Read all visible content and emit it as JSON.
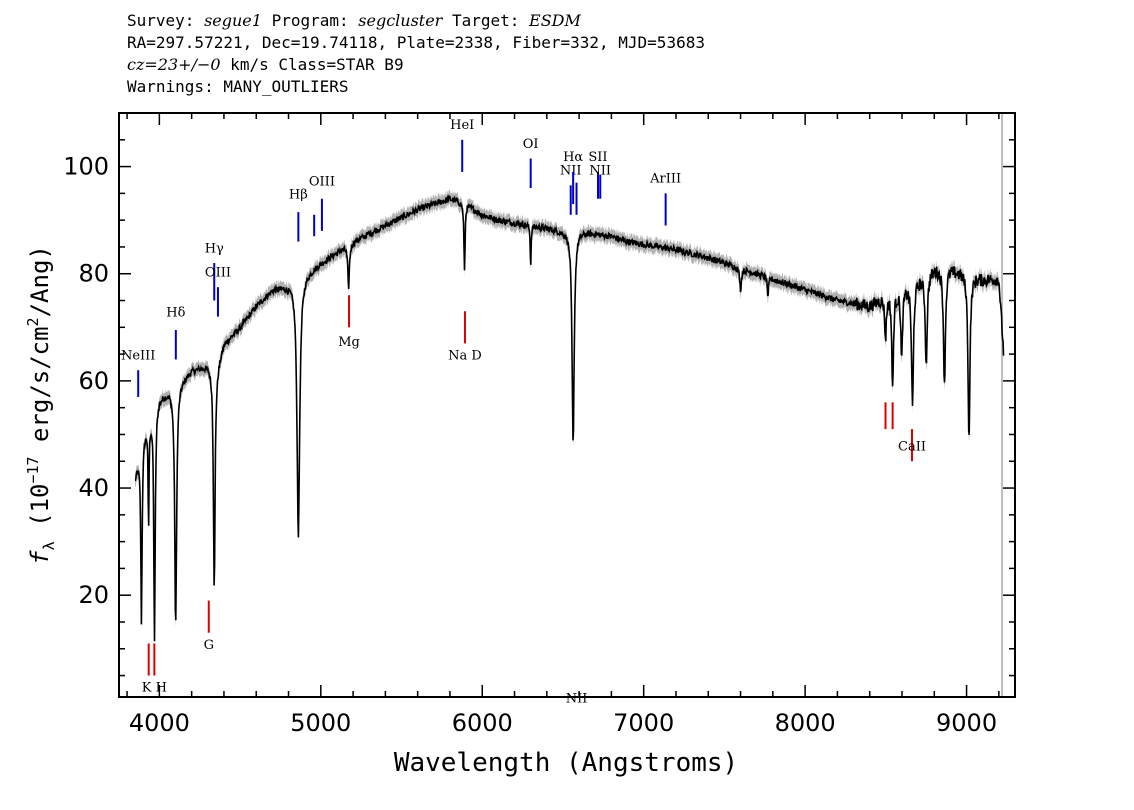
{
  "header": {
    "line1": {
      "survey_label": "Survey: ",
      "survey": "segue1",
      "program_label": " Program: ",
      "program": "segcluster",
      "target_label": " Target: ",
      "target": "ESDM"
    },
    "line2": "RA=297.57221, Dec=19.74118, Plate=2338, Fiber=332, MJD=53683",
    "line3": {
      "cz": "cz=23+/−0",
      "rest": " km/s Class=STAR B9"
    },
    "line4": "Warnings: MANY_OUTLIERS"
  },
  "chart_data": {
    "type": "line",
    "xlabel": "Wavelength (Angstroms)",
    "ylabel": "fλ (10⁻¹⁷ erg/s/cm²/Ang)",
    "ylabel_parts": {
      "f": "f",
      "sub": "λ",
      "pre": " (10",
      "exp1": "−17",
      "mid": " erg/s/cm",
      "exp2": "2",
      "post": "/Ang)"
    },
    "xlim": [
      3750,
      9300
    ],
    "ylim": [
      1,
      110
    ],
    "xticks": [
      4000,
      5000,
      6000,
      7000,
      8000,
      9000
    ],
    "yticks": [
      20,
      40,
      60,
      80,
      100
    ],
    "grid": false,
    "colors": {
      "spectrum": "#000000",
      "error": "#b0b0b0",
      "emission": "#0000cc",
      "absorption": "#dd0000",
      "edge": "#bdbdbd"
    },
    "continuum": [
      [
        3850,
        42
      ],
      [
        3900,
        50
      ],
      [
        4000,
        57
      ],
      [
        4100,
        59
      ],
      [
        4200,
        62
      ],
      [
        4300,
        63
      ],
      [
        4350,
        62
      ],
      [
        4400,
        67
      ],
      [
        4500,
        70
      ],
      [
        4600,
        74
      ],
      [
        4700,
        77
      ],
      [
        4800,
        78
      ],
      [
        4900,
        80
      ],
      [
        5000,
        82
      ],
      [
        5200,
        86
      ],
      [
        5400,
        89
      ],
      [
        5600,
        92
      ],
      [
        5800,
        94
      ],
      [
        5900,
        93
      ],
      [
        6000,
        91
      ],
      [
        6100,
        90
      ],
      [
        6200,
        89.5
      ],
      [
        6300,
        89
      ],
      [
        6400,
        88.5
      ],
      [
        6500,
        88
      ],
      [
        6600,
        88
      ],
      [
        6700,
        87.5
      ],
      [
        6800,
        87
      ],
      [
        6900,
        86
      ],
      [
        7000,
        85.5
      ],
      [
        7200,
        84.5
      ],
      [
        7400,
        83
      ],
      [
        7600,
        81
      ],
      [
        7800,
        79
      ],
      [
        8000,
        77
      ],
      [
        8200,
        75
      ],
      [
        8400,
        74
      ],
      [
        8500,
        76
      ],
      [
        8600,
        77
      ],
      [
        8700,
        79
      ],
      [
        8800,
        81
      ],
      [
        8900,
        81
      ],
      [
        9000,
        80
      ],
      [
        9100,
        79
      ],
      [
        9200,
        79
      ],
      [
        9230,
        65
      ]
    ],
    "absorption_features": [
      [
        3889,
        33,
        5
      ],
      [
        3933,
        20,
        3
      ],
      [
        3970,
        43,
        5
      ],
      [
        4101,
        45,
        7
      ],
      [
        4340,
        41,
        6
      ],
      [
        4861,
        48,
        10
      ],
      [
        5172,
        8,
        6
      ],
      [
        5890,
        13,
        4
      ],
      [
        6300,
        8,
        3
      ],
      [
        6563,
        40,
        8
      ],
      [
        7600,
        4,
        6
      ],
      [
        7770,
        4,
        4
      ],
      [
        8498,
        8,
        6
      ],
      [
        8542,
        18,
        6
      ],
      [
        8598,
        13,
        6
      ],
      [
        8665,
        23,
        7
      ],
      [
        8750,
        17,
        7
      ],
      [
        8863,
        22,
        7
      ],
      [
        9015,
        31,
        7
      ]
    ],
    "markers": [
      {
        "label": "NeIII",
        "x": 3869,
        "y0": 57,
        "y1": 62,
        "ly": 64,
        "type": "emission"
      },
      {
        "label": "Hδ",
        "x": 4102,
        "y0": 64,
        "y1": 69.5,
        "ly": 72,
        "type": "emission"
      },
      {
        "label": "Hγ",
        "x": 4340,
        "y0": 75,
        "y1": 82,
        "ly": 84,
        "type": "emission"
      },
      {
        "label": "OIII",
        "x": 4363,
        "y0": 72,
        "y1": 77.5,
        "ly": 79.5,
        "type": "emission"
      },
      {
        "label": "Hβ",
        "x": 4861,
        "y0": 86,
        "y1": 91.5,
        "ly": 94,
        "type": "emission"
      },
      {
        "label": "",
        "x": 4959,
        "y0": 87,
        "y1": 91,
        "ly": 0,
        "type": "emission"
      },
      {
        "label": "OIII",
        "x": 5007,
        "y0": 88,
        "y1": 94,
        "ly": 96.5,
        "type": "emission"
      },
      {
        "label": "HeI",
        "x": 5876,
        "y0": 99,
        "y1": 105,
        "ly": 107,
        "type": "emission"
      },
      {
        "label": "OI",
        "x": 6300,
        "y0": 96,
        "y1": 101.5,
        "ly": 103.5,
        "type": "emission"
      },
      {
        "label": "NII",
        "x": 6548,
        "y0": 91,
        "y1": 96.5,
        "ly": 98.5,
        "type": "emission"
      },
      {
        "label": "Hα",
        "x": 6563,
        "y0": 93,
        "y1": 99,
        "ly": 101,
        "type": "emission"
      },
      {
        "label": "NII",
        "x": 6584,
        "y0": 91,
        "y1": 97,
        "ly": 0,
        "type": "emission"
      },
      {
        "label": "SII",
        "x": 6717,
        "y0": 94,
        "y1": 99,
        "ly": 101,
        "type": "emission"
      },
      {
        "label": "NII",
        "x": 6731,
        "y0": 94,
        "y1": 98.5,
        "ly": 98.5,
        "type": "emission"
      },
      {
        "label": "ArIII",
        "x": 7136,
        "y0": 89,
        "y1": 95,
        "ly": 97,
        "type": "emission"
      },
      {
        "label": "",
        "x": 3934,
        "y0": 5,
        "y1": 11,
        "ly": 0,
        "type": "absorption"
      },
      {
        "label": "K H",
        "x": 3969,
        "y0": 5,
        "y1": 11,
        "ly": 2,
        "type": "absorption"
      },
      {
        "label": "G",
        "x": 4306,
        "y0": 13,
        "y1": 19,
        "ly": 10,
        "type": "absorption"
      },
      {
        "label": "Mg",
        "x": 5175,
        "y0": 70,
        "y1": 76,
        "ly": 66.5,
        "type": "absorption"
      },
      {
        "label": "Na D",
        "x": 5893,
        "y0": 67,
        "y1": 73,
        "ly": 64,
        "type": "absorption"
      },
      {
        "label": "",
        "x": 8498,
        "y0": 51,
        "y1": 56,
        "ly": 0,
        "type": "absorption"
      },
      {
        "label": "",
        "x": 8542,
        "y0": 51,
        "y1": 56,
        "ly": 0,
        "type": "absorption"
      },
      {
        "label": "CaII",
        "x": 8662,
        "y0": 45,
        "y1": 51,
        "ly": 47,
        "type": "absorption"
      }
    ]
  }
}
